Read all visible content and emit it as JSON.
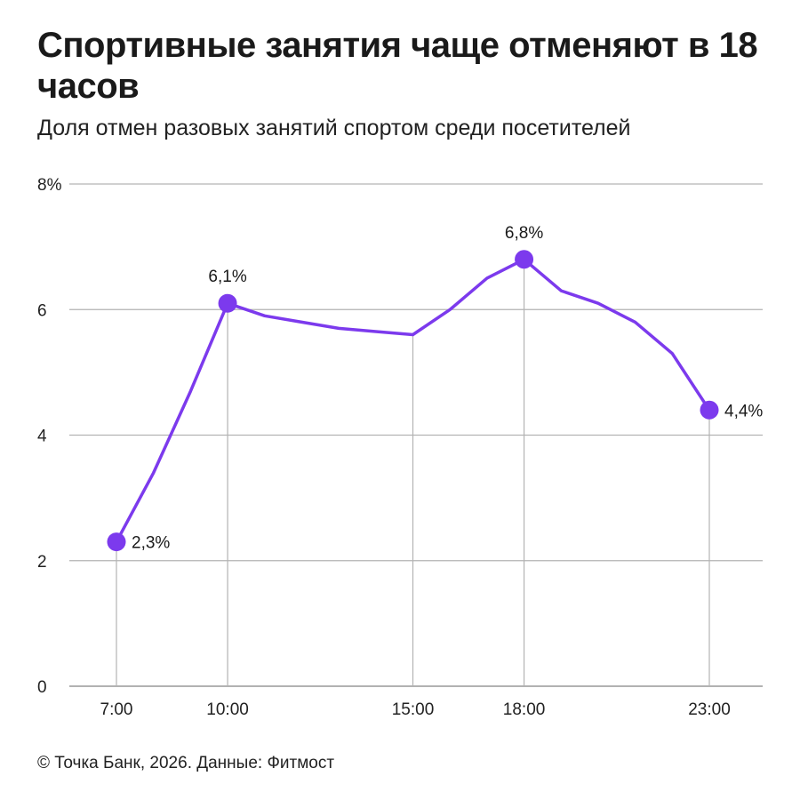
{
  "title": "Спортивные занятия чаще отменяют в 18 часов",
  "subtitle": "Доля отмен разовых занятий спортом среди посетителей",
  "footer": "© Точка Банк, 2026. Данные: Фитмост",
  "colors": {
    "line": "#7c3aed",
    "marker": "#7c3aed",
    "grid": "#b3b3b3",
    "axis": "#999999"
  },
  "chart_data": {
    "type": "line",
    "title": "Спортивные занятия чаще отменяют в 18 часов",
    "subtitle": "Доля отмен разовых занятий спортом среди посетителей",
    "xlabel": "",
    "ylabel": "",
    "xlim": [
      7,
      24
    ],
    "ylim": [
      0,
      8
    ],
    "y_ticks": [
      {
        "value": 0,
        "label": "0"
      },
      {
        "value": 2,
        "label": "2"
      },
      {
        "value": 4,
        "label": "4"
      },
      {
        "value": 6,
        "label": "6"
      },
      {
        "value": 8,
        "label": "8%"
      }
    ],
    "x_ticks": [
      {
        "value": 7,
        "label": "7:00"
      },
      {
        "value": 10,
        "label": "10:00"
      },
      {
        "value": 15,
        "label": "15:00"
      },
      {
        "value": 18,
        "label": "18:00"
      },
      {
        "value": 23,
        "label": "23:00"
      }
    ],
    "grid": true,
    "x": [
      7,
      8,
      9,
      10,
      11,
      12,
      13,
      14,
      15,
      16,
      17,
      18,
      19,
      20,
      21,
      22,
      23
    ],
    "values": [
      2.3,
      3.4,
      4.7,
      6.1,
      5.9,
      5.8,
      5.7,
      5.65,
      5.6,
      6.0,
      6.5,
      6.8,
      6.3,
      6.1,
      5.8,
      5.3,
      4.4
    ],
    "highlights": [
      {
        "x": 7,
        "value": 2.3,
        "label": "2,3%",
        "position": "right"
      },
      {
        "x": 10,
        "value": 6.1,
        "label": "6,1%",
        "position": "above"
      },
      {
        "x": 18,
        "value": 6.8,
        "label": "6,8%",
        "position": "above"
      },
      {
        "x": 23,
        "value": 4.4,
        "label": "4,4%",
        "position": "right"
      }
    ]
  }
}
